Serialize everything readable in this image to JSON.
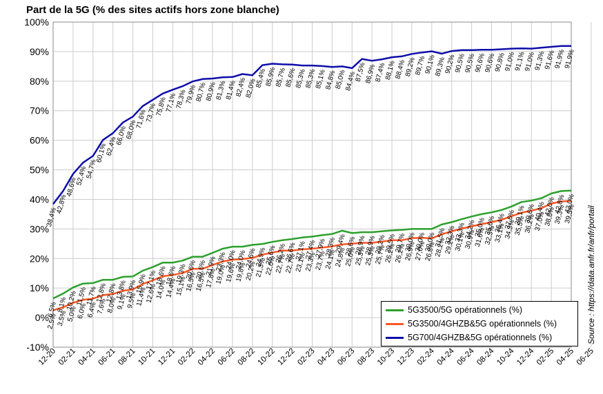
{
  "chart_data": {
    "type": "line",
    "title": "Part de la 5G (% des sites actifs hors zone blanche)",
    "source": "Source : https://data.anfr.fr/anfr/portail",
    "ylim": [
      -10,
      100
    ],
    "y_ticks": [
      "-10%",
      "0%",
      "10%",
      "20%",
      "30%",
      "40%",
      "50%",
      "60%",
      "70%",
      "80%",
      "90%",
      "100%"
    ],
    "grid": true,
    "legend_position": "bottom-right",
    "x_tick_labels": [
      "12-20",
      "02-21",
      "04-21",
      "06-21",
      "08-21",
      "10-21",
      "12-21",
      "02-22",
      "04-22",
      "06-22",
      "08-22",
      "10-22",
      "12-22",
      "02-23",
      "04-23",
      "06-23",
      "08-23",
      "10-23",
      "12-23",
      "02-24",
      "04-24",
      "06-24",
      "08-24",
      "10-24",
      "12-24",
      "02-25",
      "04-25",
      "06-25"
    ],
    "n_points": 53,
    "series": [
      {
        "name": "5G3500/5G opérationnels (%)",
        "color": "#2ca02c",
        "values": [
          6.5,
          8.1,
          10.2,
          11.5,
          11.7,
          12.8,
          12.8,
          13.8,
          13.9,
          15.9,
          17.1,
          18.6,
          18.6,
          19.3,
          20.6,
          20.6,
          21.9,
          23.3,
          24.0,
          24.0,
          24.6,
          24.9,
          25.6,
          26.2,
          26.6,
          27.1,
          27.4,
          27.9,
          28.3,
          29.4,
          28.6,
          28.9,
          28.9,
          29.2,
          29.5,
          29.7,
          30.0,
          30.0,
          30.0,
          31.5,
          32.3,
          33.3,
          34.2,
          35.0,
          35.6,
          36.4,
          37.6,
          39.1,
          39.6,
          40.4,
          42.0,
          42.8,
          43.0
        ],
        "labels": [
          "6,5%",
          "8,1%",
          "10,2%",
          "11,5%",
          "11,7%",
          "12,8%",
          "12,8%",
          "13,8%",
          "13,9%",
          "15,9%",
          "17,1%",
          "18,6%",
          "18,6%",
          "19,3%",
          "20,6%",
          "20,6%",
          "21,9%",
          "23,3%",
          "24,0%",
          "24,0%",
          "24,6%",
          "24,9%",
          "25,6%",
          "26,2%",
          "26,6%",
          "27,1%",
          "27,4%",
          "27,9%",
          "28,3%",
          "29,4%",
          "28,6%",
          "28,9%",
          "28,9%",
          "29,2%",
          "29,5%",
          "29,7%",
          "30,0%",
          "30,0%",
          "30,0%",
          "31,5%",
          "32,3%",
          "33,3%",
          "34,2%",
          "35,0%",
          "35,6%",
          "36,4%",
          "37,6%",
          "39,1%",
          "39,6%",
          "40,4%",
          "42,0%",
          "42,8%",
          "43,0%"
        ]
      },
      {
        "name": "5G3500/4GHZB&5G opérationnels (%)",
        "color": "#ff5722",
        "values": [
          2.5,
          3.5,
          5.0,
          6.0,
          6.4,
          7.6,
          8.0,
          9.1,
          9.5,
          11.4,
          12.6,
          14.0,
          14.4,
          15.1,
          16.5,
          16.5,
          17.8,
          19.0,
          19.6,
          19.8,
          20.2,
          21.3,
          22.0,
          22.7,
          22.7,
          23.1,
          23.3,
          23.7,
          24.1,
          24.8,
          25.0,
          25.3,
          25.3,
          25.7,
          26.2,
          26.2,
          26.9,
          27.0,
          26.8,
          28.2,
          29.2,
          30.1,
          30.9,
          31.6,
          32.3,
          33.1,
          34.3,
          35.5,
          36.2,
          37.0,
          38.6,
          39.3,
          39.5
        ],
        "labels": [
          "2,5%",
          "3,5%",
          "5,0%",
          "6,0%",
          "6,4%",
          "7,6%",
          "8,0%",
          "9,1%",
          "9,5%",
          "11,4%",
          "12,6%",
          "14,0%",
          "14,4%",
          "15,1%",
          "16,5%",
          "16,5%",
          "17,8%",
          "19,0%",
          "19,6%",
          "19,8%",
          "20,2%",
          "21,3%",
          "22,0%",
          "22,7%",
          "22,7%",
          "23,1%",
          "23,3%",
          "23,7%",
          "24,1%",
          "24,8%",
          "25,0%",
          "25,3%",
          "25,3%",
          "25,7%",
          "26,2%",
          "26,2%",
          "26,9%",
          "27,0%",
          "26,8%",
          "28,2%",
          "29,2%",
          "30,1%",
          "30,9%",
          "31,6%",
          "32,3%",
          "33,1%",
          "34,3%",
          "35,5%",
          "36,2%",
          "37,0%",
          "38,6%",
          "39,3%",
          "39,5%"
        ]
      },
      {
        "name": "5G700/4GHZB&5G opérationnels (%)",
        "color": "#0d0daa",
        "values": [
          38.4,
          42.8,
          48.6,
          52.4,
          54.7,
          60.1,
          62.4,
          66.0,
          68.0,
          71.6,
          73.7,
          75.8,
          77.1,
          78.3,
          79.9,
          80.7,
          80.9,
          81.3,
          81.4,
          82.4,
          82.0,
          85.4,
          85.9,
          85.7,
          85.6,
          85.3,
          85.3,
          85.1,
          84.8,
          85.0,
          84.4,
          87.5,
          86.9,
          87.4,
          88.1,
          88.4,
          89.2,
          89.7,
          90.1,
          89.3,
          90.2,
          90.5,
          90.5,
          90.6,
          90.6,
          90.8,
          91.0,
          91.1,
          91.0,
          91.3,
          91.6,
          91.9,
          91.9
        ],
        "labels": [
          "38,4%",
          "42,8%",
          "48,6%",
          "52,4%",
          "54,7%",
          "60,1%",
          "62,4%",
          "66,0%",
          "68,0%",
          "71,6%",
          "73,7%",
          "75,8%",
          "77,1%",
          "78,3%",
          "79,9%",
          "80,7%",
          "80,9%",
          "81,3%",
          "81,4%",
          "82,4%",
          "82,0%",
          "85,4%",
          "85,9%",
          "85,7%",
          "85,6%",
          "85,3%",
          "85,3%",
          "85,1%",
          "84,8%",
          "85,0%",
          "84,4%",
          "87,5%",
          "86,9%",
          "87,4%",
          "88,1%",
          "88,4%",
          "89,2%",
          "89,7%",
          "90,1%",
          "89,3%",
          "90,2%",
          "90,5%",
          "90,5%",
          "90,6%",
          "90,6%",
          "90,8%",
          "91,0%",
          "91,1%",
          "91,0%",
          "91,3%",
          "91,6%",
          "91,9%",
          "91,9%"
        ]
      }
    ]
  }
}
